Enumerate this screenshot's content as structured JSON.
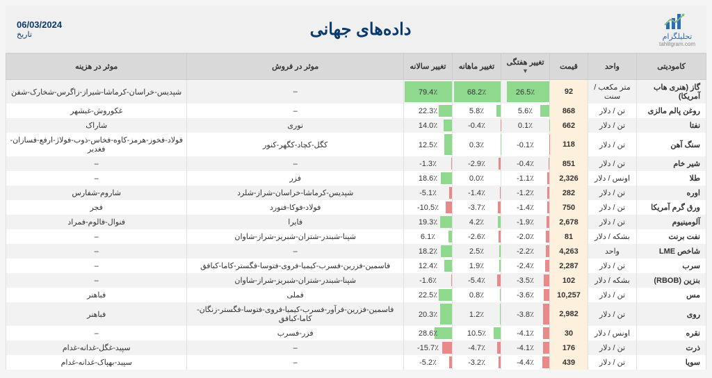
{
  "header": {
    "title": "داده‌های جهانی",
    "date": "06/03/2024",
    "date_label": "تاریخ",
    "logo_text": "تحلیلگرام",
    "logo_sub": "tahlilgram.com"
  },
  "colors": {
    "pos_bar": "#8fd98f",
    "neg_bar": "#e88a8a",
    "price_bg": "#fdf0dc",
    "header_bg": "#d9d9d9"
  },
  "columns": [
    {
      "key": "commodity",
      "label": "کامودیتی"
    },
    {
      "key": "unit",
      "label": "واحد"
    },
    {
      "key": "price",
      "label": "قیمت"
    },
    {
      "key": "wk",
      "label": "تغییر هفتگی",
      "sort": true
    },
    {
      "key": "mo",
      "label": "تغییر ماهانه"
    },
    {
      "key": "yr",
      "label": "تغییر سالانه"
    },
    {
      "key": "sell",
      "label": "موثر در فروش"
    },
    {
      "key": "cost",
      "label": "موثر در هزینه"
    }
  ],
  "scale": {
    "wk_max": 30,
    "mo_max": 70,
    "yr_max": 80
  },
  "rows": [
    {
      "commodity": "گاز (هنری هاب آمریکا)",
      "unit": "متر مکعب / سنت",
      "price": "92",
      "wk": 26.5,
      "mo": 68.2,
      "yr": 79.4,
      "sell": "–",
      "cost": "شپدیس-خراسان-کرماشا-شیراز-زاگرس-شخارک-شفن"
    },
    {
      "commodity": "روغن پالم مالزی",
      "unit": "تن / دلار",
      "price": "868",
      "wk": 5.6,
      "mo": 5.8,
      "yr": 22.3,
      "sell": "–",
      "cost": "غکوروش-غبشهر"
    },
    {
      "commodity": "نفتا",
      "unit": "تن / دلار",
      "price": "662",
      "wk": 0.1,
      "mo": -0.4,
      "yr": 14.0,
      "sell": "نوری",
      "cost": "شاراک"
    },
    {
      "commodity": "سنگ آهن",
      "unit": "تن / دلار",
      "price": "118",
      "wk": -0.1,
      "mo": 0.3,
      "yr": 12.5,
      "sell": "کگل-کچاد-کگهر-کنور",
      "cost": "فولاد-فخوز-هرمز-کاوه-فخاس-ذوب-فولاژ-ارفع-فسازان-فغدیر"
    },
    {
      "commodity": "شیر خام",
      "unit": "تن / دلار",
      "price": "851",
      "wk": -0.4,
      "mo": -2.9,
      "yr": -1.3,
      "sell": "–",
      "cost": "–"
    },
    {
      "commodity": "طلا",
      "unit": "اونس / دلار",
      "price": "2,326",
      "wk": -1.1,
      "mo": 0.0,
      "yr": 18.6,
      "sell": "فزر",
      "cost": "–"
    },
    {
      "commodity": "اوره",
      "unit": "تن / دلار",
      "price": "282",
      "wk": -1.2,
      "mo": -1.4,
      "yr": -5.1,
      "sell": "شپدیس-کرماشا-خراسان-شراز-شلرد",
      "cost": "شاروم-شفارس"
    },
    {
      "commodity": "ورق گرم آمریکا",
      "unit": "تن / دلار",
      "price": "750",
      "wk": -1.4,
      "mo": -3.7,
      "yr": -10.5,
      "sell": "فولاد-فوکا-فنورد",
      "cost": "فجر"
    },
    {
      "commodity": "آلومینیوم",
      "unit": "تن / دلار",
      "price": "2,678",
      "wk": -1.9,
      "mo": 4.2,
      "yr": 19.3,
      "sell": "فایرا",
      "cost": "فنوال-فالوم-فمراد"
    },
    {
      "commodity": "نفت برنت",
      "unit": "بشکه / دلار",
      "price": "81",
      "wk": -2.0,
      "mo": -2.6,
      "yr": 6.1,
      "sell": "شپنا-شبندر-شتران-شبریز-شراز-شاوان",
      "cost": "–"
    },
    {
      "commodity": "شاخص LME",
      "unit": "واحد",
      "price": "4,263",
      "wk": -2.2,
      "mo": 2.5,
      "yr": 18.2,
      "sell": "–",
      "cost": "–"
    },
    {
      "commodity": "سرب",
      "unit": "تن / دلار",
      "price": "2,287",
      "wk": -2.4,
      "mo": 1.9,
      "yr": 12.4,
      "sell": "فاسمین-فزرین-فسرب-کیمیا-فروی-فتوسا-فگستر-کاما-کبافق",
      "cost": "–"
    },
    {
      "commodity": "بنزین (RBOB)",
      "unit": "بشکه / دلار",
      "price": "102",
      "wk": -3.5,
      "mo": -5.4,
      "yr": -1.6,
      "sell": "شپنا-شبندر-شتران-شبریز-شراز-شاوان",
      "cost": "–"
    },
    {
      "commodity": "مس",
      "unit": "تن / دلار",
      "price": "10,257",
      "wk": -3.6,
      "mo": 0.8,
      "yr": 22.5,
      "sell": "فملی",
      "cost": "فباهنر"
    },
    {
      "commodity": "روی",
      "unit": "تن / دلار",
      "price": "2,982",
      "wk": -3.8,
      "mo": 1.2,
      "yr": 20.3,
      "sell": "فاسمین-فزرین-فرآور-فسرب-کیمیا-فروی-فتوسا-فگستر-زنگان-کاما-کبافق",
      "cost": "فباهنر"
    },
    {
      "commodity": "نقره",
      "unit": "اونس / دلار",
      "price": "30",
      "wk": -4.1,
      "mo": 10.5,
      "yr": 28.6,
      "sell": "فزر-فسرب",
      "cost": "–"
    },
    {
      "commodity": "ذرت",
      "unit": "تن / دلار",
      "price": "176",
      "wk": -4.1,
      "mo": -4.7,
      "yr": -15.7,
      "sell": "–",
      "cost": "سپید-غگل-غدانه-غدام"
    },
    {
      "commodity": "سویا",
      "unit": "تن / دلار",
      "price": "439",
      "wk": -4.4,
      "mo": -3.2,
      "yr": -5.2,
      "sell": "–",
      "cost": "سپید-بهپاک-غدانه-غدام"
    }
  ]
}
